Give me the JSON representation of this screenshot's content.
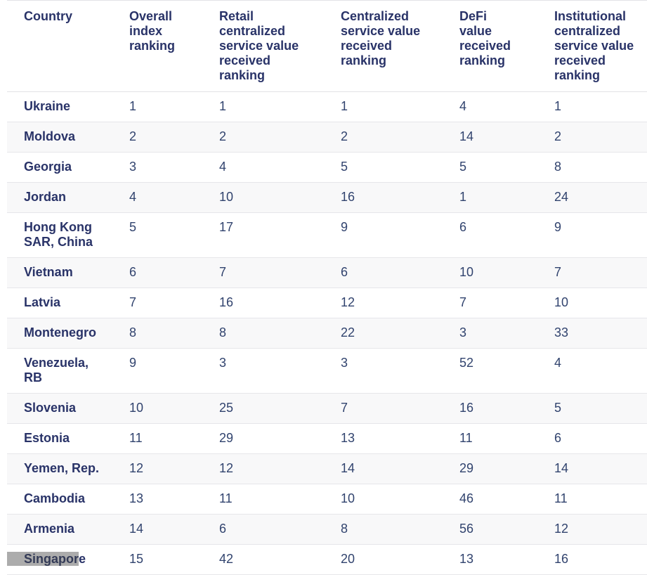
{
  "table": {
    "columns": [
      "Country",
      "Overall index ranking",
      "Retail centralized service value received ranking",
      "Centralized service value received ranking",
      "DeFi value received ranking",
      "Institutional centralized service value received ranking"
    ],
    "rows": [
      {
        "country": "Ukraine",
        "values": [
          "1",
          "1",
          "1",
          "4",
          "1"
        ]
      },
      {
        "country": "Moldova",
        "values": [
          "2",
          "2",
          "2",
          "14",
          "2"
        ]
      },
      {
        "country": "Georgia",
        "values": [
          "3",
          "4",
          "5",
          "5",
          "8"
        ]
      },
      {
        "country": "Jordan",
        "values": [
          "4",
          "10",
          "16",
          "1",
          "24"
        ]
      },
      {
        "country": "Hong Kong SAR, China",
        "values": [
          "5",
          "17",
          "9",
          "6",
          "9"
        ]
      },
      {
        "country": "Vietnam",
        "values": [
          "6",
          "7",
          "6",
          "10",
          "7"
        ]
      },
      {
        "country": "Latvia",
        "values": [
          "7",
          "16",
          "12",
          "7",
          "10"
        ]
      },
      {
        "country": "Montenegro",
        "values": [
          "8",
          "8",
          "22",
          "3",
          "33"
        ]
      },
      {
        "country": "Venezuela, RB",
        "values": [
          "9",
          "3",
          "3",
          "52",
          "4"
        ]
      },
      {
        "country": "Slovenia",
        "values": [
          "10",
          "25",
          "7",
          "16",
          "5"
        ]
      },
      {
        "country": "Estonia",
        "values": [
          "11",
          "29",
          "13",
          "11",
          "6"
        ]
      },
      {
        "country": "Yemen, Rep.",
        "values": [
          "12",
          "12",
          "14",
          "29",
          "14"
        ]
      },
      {
        "country": "Cambodia",
        "values": [
          "13",
          "11",
          "10",
          "46",
          "11"
        ]
      },
      {
        "country": "Armenia",
        "values": [
          "14",
          "6",
          "8",
          "56",
          "12"
        ]
      },
      {
        "country": "Singapore",
        "values": [
          "15",
          "42",
          "20",
          "13",
          "16"
        ],
        "highlight": {
          "text": "Singapor",
          "suffix": "e"
        }
      }
    ]
  },
  "colors": {
    "header_text": "#293368",
    "country_text": "#293368",
    "value_text": "#31436e",
    "row_stripe": "#f8f8f9",
    "row_border": "#e6e6ea",
    "highlight_bg": "#acacac",
    "highlight_text": "#343b57"
  },
  "chart_data": {
    "type": "table",
    "title": "",
    "columns": [
      "Country",
      "Overall index ranking",
      "Retail centralized service value received ranking",
      "Centralized service value received ranking",
      "DeFi value received ranking",
      "Institutional centralized service value received ranking"
    ],
    "rows": [
      [
        "Ukraine",
        1,
        1,
        1,
        4,
        1
      ],
      [
        "Moldova",
        2,
        2,
        2,
        14,
        2
      ],
      [
        "Georgia",
        3,
        4,
        5,
        5,
        8
      ],
      [
        "Jordan",
        4,
        10,
        16,
        1,
        24
      ],
      [
        "Hong Kong SAR, China",
        5,
        17,
        9,
        6,
        9
      ],
      [
        "Vietnam",
        6,
        7,
        6,
        10,
        7
      ],
      [
        "Latvia",
        7,
        16,
        12,
        7,
        10
      ],
      [
        "Montenegro",
        8,
        8,
        22,
        3,
        33
      ],
      [
        "Venezuela, RB",
        9,
        3,
        3,
        52,
        4
      ],
      [
        "Slovenia",
        10,
        25,
        7,
        16,
        5
      ],
      [
        "Estonia",
        11,
        29,
        13,
        11,
        6
      ],
      [
        "Yemen, Rep.",
        12,
        12,
        14,
        29,
        14
      ],
      [
        "Cambodia",
        13,
        11,
        10,
        46,
        11
      ],
      [
        "Armenia",
        14,
        6,
        8,
        56,
        12
      ],
      [
        "Singapore",
        15,
        42,
        20,
        13,
        16
      ]
    ],
    "layout_hints": {
      "striped_rows": true,
      "grid": "horizontal-only",
      "highlighted_cell": {
        "row": "Singapore",
        "column": "Country",
        "highlighted_text": "Singapor"
      }
    }
  }
}
